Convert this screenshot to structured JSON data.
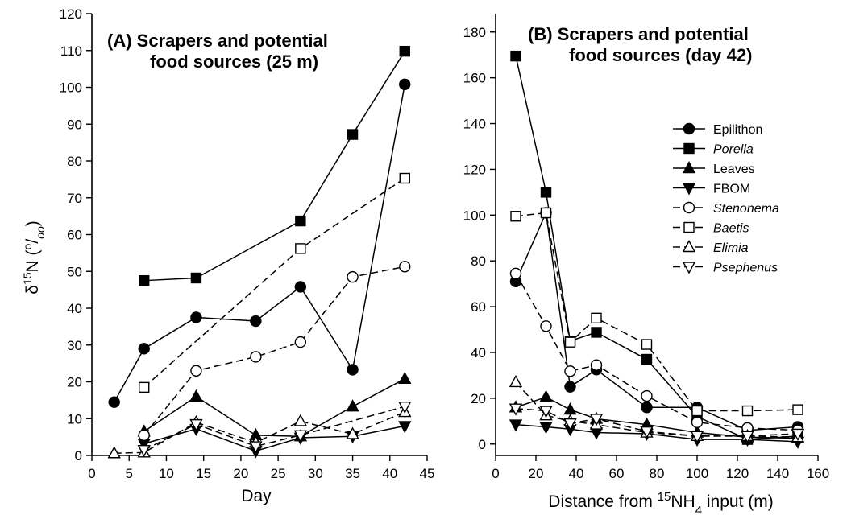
{
  "chart_data": [
    {
      "type": "line",
      "title_lines": [
        "(A) Scrapers and potential",
        "food sources (25 m)"
      ],
      "xlabel": "Day",
      "ylabel_parts": {
        "delta": "δ",
        "sup": "15",
        "n": "N (",
        "o1": "o",
        "slash": "/",
        "o2": "oo",
        "close": ")"
      },
      "xlim": [
        0,
        45
      ],
      "ylim": [
        0,
        120
      ],
      "xticks": [
        0,
        5,
        10,
        15,
        20,
        25,
        30,
        35,
        40,
        45
      ],
      "yticks": [
        0,
        10,
        20,
        30,
        40,
        50,
        60,
        70,
        80,
        90,
        100,
        110,
        120
      ],
      "series": [
        {
          "name": "Epilithon",
          "marker": "circle",
          "filled": true,
          "dashed": false,
          "points": [
            [
              3,
              14.5
            ],
            [
              7,
              29
            ],
            [
              14,
              37.5
            ],
            [
              22,
              36.5
            ],
            [
              28,
              45.8
            ],
            [
              35,
              23.3
            ],
            [
              42,
              100.8
            ]
          ]
        },
        {
          "name": "Porella",
          "marker": "square",
          "filled": true,
          "dashed": false,
          "points": [
            [
              7,
              47.5
            ],
            [
              14,
              48.2
            ],
            [
              28,
              63.7
            ],
            [
              35,
              87.2
            ],
            [
              42,
              109.8
            ]
          ]
        },
        {
          "name": "Leaves",
          "marker": "triangle-up",
          "filled": true,
          "dashed": false,
          "points": [
            [
              7,
              6.5
            ],
            [
              14,
              16
            ],
            [
              22,
              5.5
            ],
            [
              28,
              5.2
            ],
            [
              35,
              13.3
            ],
            [
              42,
              20.8
            ]
          ]
        },
        {
          "name": "FBOM",
          "marker": "triangle-down",
          "filled": true,
          "dashed": false,
          "points": [
            [
              7,
              3.2
            ],
            [
              14,
              7.2
            ],
            [
              22,
              1.2
            ],
            [
              28,
              4.8
            ],
            [
              35,
              5.2
            ],
            [
              42,
              8
            ]
          ]
        },
        {
          "name": "Stenonema",
          "marker": "circle",
          "filled": false,
          "dashed": true,
          "points": [
            [
              7,
              5.5
            ],
            [
              14,
              23
            ],
            [
              22,
              26.8
            ],
            [
              28,
              30.8
            ],
            [
              35,
              48.5
            ],
            [
              42,
              51.3
            ]
          ]
        },
        {
          "name": "Baetis",
          "marker": "square",
          "filled": false,
          "dashed": true,
          "points": [
            [
              7,
              18.5
            ],
            [
              28,
              56.2
            ],
            [
              42,
              75.3
            ]
          ]
        },
        {
          "name": "Elimia",
          "marker": "triangle-up",
          "filled": false,
          "dashed": true,
          "points": [
            [
              3,
              0.6
            ],
            [
              7,
              0.8
            ],
            [
              14,
              9
            ],
            [
              22,
              3.5
            ],
            [
              28,
              9.3
            ],
            [
              35,
              5.8
            ],
            [
              42,
              11.8
            ]
          ]
        },
        {
          "name": "Psephenus",
          "marker": "triangle-down",
          "filled": false,
          "dashed": true,
          "points": [
            [
              7,
              1.5
            ],
            [
              14,
              8.5
            ],
            [
              22,
              2.5
            ],
            [
              28,
              5.5
            ],
            [
              42,
              13.3
            ]
          ]
        }
      ]
    },
    {
      "type": "line",
      "title_lines": [
        "(B) Scrapers and potential",
        "food sources (day 42)"
      ],
      "xlabel_parts": {
        "pre": "Distance from ",
        "sup": "15",
        "nh": "NH",
        "sub": "4",
        "post": " input (m)"
      },
      "xlim": [
        0,
        160
      ],
      "ylim": [
        -5,
        188
      ],
      "xticks": [
        0,
        20,
        40,
        60,
        80,
        100,
        120,
        140,
        160
      ],
      "yticks": [
        0,
        20,
        40,
        60,
        80,
        100,
        120,
        140,
        160,
        180
      ],
      "legend_position": "right",
      "series": [
        {
          "name": "Epilithon",
          "marker": "circle",
          "filled": true,
          "dashed": false,
          "points": [
            [
              10,
              71
            ],
            [
              25,
              101
            ],
            [
              37,
              25
            ],
            [
              50,
              32.5
            ],
            [
              75,
              16
            ],
            [
              100,
              16
            ],
            [
              125,
              6
            ],
            [
              150,
              7.5
            ]
          ]
        },
        {
          "name": "Porella",
          "marker": "square",
          "filled": true,
          "dashed": false,
          "points": [
            [
              10,
              169.5
            ],
            [
              25,
              110
            ],
            [
              37,
              45
            ],
            [
              50,
              48.8
            ],
            [
              75,
              37
            ],
            [
              100,
              12
            ],
            [
              125,
              2
            ],
            [
              150,
              3.5
            ]
          ]
        },
        {
          "name": "Leaves",
          "marker": "triangle-up",
          "filled": true,
          "dashed": false,
          "points": [
            [
              10,
              16
            ],
            [
              25,
              20.5
            ],
            [
              37,
              15
            ],
            [
              50,
              11
            ],
            [
              75,
              8.5
            ],
            [
              100,
              5
            ],
            [
              125,
              3
            ],
            [
              150,
              2.5
            ]
          ]
        },
        {
          "name": "FBOM",
          "marker": "triangle-down",
          "filled": true,
          "dashed": false,
          "points": [
            [
              10,
              8.5
            ],
            [
              25,
              7.5
            ],
            [
              37,
              6.5
            ],
            [
              50,
              5
            ],
            [
              75,
              4.5
            ],
            [
              100,
              2
            ],
            [
              125,
              2
            ],
            [
              150,
              1
            ]
          ]
        },
        {
          "name": "Stenonema",
          "marker": "circle",
          "filled": false,
          "dashed": true,
          "points": [
            [
              10,
              74.5
            ],
            [
              25,
              51.5
            ],
            [
              37,
              31.8
            ],
            [
              50,
              34.5
            ],
            [
              75,
              21
            ],
            [
              100,
              9.5
            ],
            [
              125,
              7
            ],
            [
              150,
              6
            ]
          ]
        },
        {
          "name": "Baetis",
          "marker": "square",
          "filled": false,
          "dashed": true,
          "points": [
            [
              10,
              99.5
            ],
            [
              25,
              101
            ],
            [
              37,
              44.5
            ],
            [
              50,
              55
            ],
            [
              75,
              43.5
            ],
            [
              100,
              14.5
            ],
            [
              125,
              14.5
            ],
            [
              150,
              15
            ]
          ]
        },
        {
          "name": "Elimia",
          "marker": "triangle-up",
          "filled": false,
          "dashed": true,
          "points": [
            [
              10,
              27
            ],
            [
              25,
              12.5
            ],
            [
              37,
              10
            ],
            [
              50,
              8.5
            ],
            [
              75,
              5
            ],
            [
              100,
              3.5
            ],
            [
              125,
              3.5
            ],
            [
              150,
              3
            ]
          ]
        },
        {
          "name": "Psephenus",
          "marker": "triangle-down",
          "filled": false,
          "dashed": true,
          "points": [
            [
              10,
              15.5
            ],
            [
              25,
              14.5
            ],
            [
              37,
              9
            ],
            [
              50,
              11
            ],
            [
              75,
              5.5
            ],
            [
              100,
              3.5
            ],
            [
              125,
              3.5
            ],
            [
              150,
              4.5
            ]
          ]
        }
      ]
    }
  ],
  "legend": [
    {
      "label": "Epilithon",
      "italic": false
    },
    {
      "label": "Porella",
      "italic": true
    },
    {
      "label": "Leaves",
      "italic": false
    },
    {
      "label": "FBOM",
      "italic": false
    },
    {
      "label": "Stenonema",
      "italic": true
    },
    {
      "label": "Baetis",
      "italic": true
    },
    {
      "label": "Elimia",
      "italic": true
    },
    {
      "label": "Psephenus",
      "italic": true
    }
  ]
}
